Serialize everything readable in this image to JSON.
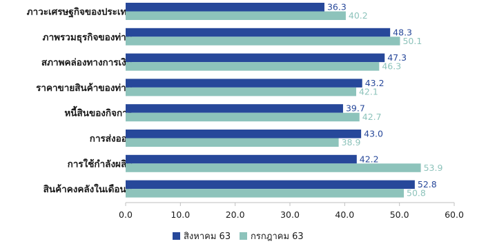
{
  "chart_data": {
    "type": "bar",
    "orientation": "horizontal",
    "title": "",
    "xlabel": "",
    "ylabel": "",
    "xlim": [
      0,
      60
    ],
    "xticks": [
      "0.0",
      "10.0",
      "20.0",
      "30.0",
      "40.0",
      "50.0",
      "60.0"
    ],
    "grid": false,
    "legend_position": "bottom",
    "categories": [
      "ภาวะเศรษฐกิจของประเทศ",
      "ภาพรวมธุรกิจของท่าน",
      "สภาพคล่องทางการเงิน",
      "ราคาขายสินค้าของท่าน",
      "หนี้สินของกิจการ",
      "การส่งออก",
      "การใช้กำลังผลิต",
      "สินค้าคงคลังในเดือนนี้"
    ],
    "series": [
      {
        "name": "สิงหาคม 63",
        "color": "#27489a",
        "label_color": "#27489a",
        "values": [
          36.3,
          48.3,
          47.3,
          43.2,
          39.7,
          43.0,
          42.2,
          52.8
        ],
        "value_labels": [
          "36.3",
          "48.3",
          "47.3",
          "43.2",
          "39.7",
          "43.0",
          "42.2",
          "52.8"
        ]
      },
      {
        "name": "กรกฎาคม 63",
        "color": "#8dc3bb",
        "label_color": "#8dc3bb",
        "values": [
          40.2,
          50.1,
          46.3,
          42.1,
          42.7,
          38.9,
          53.9,
          50.8
        ],
        "value_labels": [
          "40.2",
          "50.1",
          "46.3",
          "42.1",
          "42.7",
          "38.9",
          "53.9",
          "50.8"
        ]
      }
    ]
  }
}
